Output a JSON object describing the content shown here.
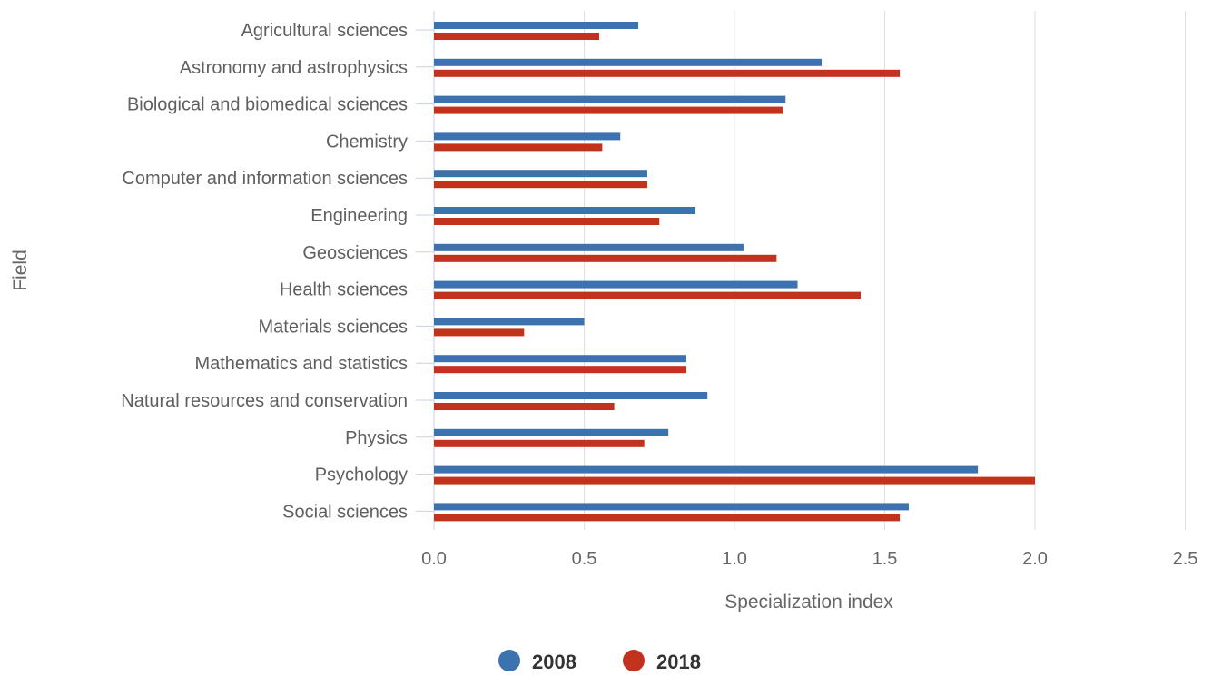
{
  "chart_data": {
    "type": "bar",
    "orientation": "horizontal",
    "xlabel": "Specialization index",
    "ylabel": "Field",
    "xlim": [
      0,
      2.5
    ],
    "xticks": [
      "0.0",
      "0.5",
      "1.0",
      "1.5",
      "2.0",
      "2.5"
    ],
    "grid": true,
    "legend_position": "bottom",
    "categories": [
      "Agricultural sciences",
      "Astronomy and astrophysics",
      "Biological and biomedical sciences",
      "Chemistry",
      "Computer and information sciences",
      "Engineering",
      "Geosciences",
      "Health sciences",
      "Materials sciences",
      "Mathematics and statistics",
      "Natural resources and conservation",
      "Physics",
      "Psychology",
      "Social sciences"
    ],
    "series": [
      {
        "name": "2008",
        "color": "#3d72b0",
        "values": [
          0.68,
          1.29,
          1.17,
          0.62,
          0.71,
          0.87,
          1.03,
          1.21,
          0.5,
          0.84,
          0.91,
          0.78,
          1.81,
          1.58
        ]
      },
      {
        "name": "2018",
        "color": "#c1331c",
        "values": [
          0.55,
          1.55,
          1.16,
          0.56,
          0.71,
          0.75,
          1.14,
          1.42,
          0.3,
          0.84,
          0.6,
          0.7,
          2.0,
          1.55
        ]
      }
    ]
  }
}
